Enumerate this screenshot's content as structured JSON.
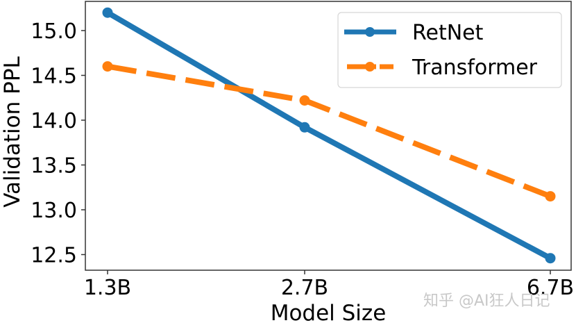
{
  "chart_data": {
    "type": "line",
    "title": "",
    "xlabel": "Model Size",
    "ylabel": "Validation PPL",
    "categories": [
      "1.3B",
      "2.7B",
      "6.7B"
    ],
    "series": [
      {
        "name": "RetNet",
        "values": [
          15.2,
          13.92,
          12.46
        ],
        "color": "#1f77b4",
        "linestyle": "solid",
        "marker": "circle"
      },
      {
        "name": "Transformer",
        "values": [
          14.6,
          14.22,
          13.15
        ],
        "color": "#ff7f0e",
        "linestyle": "dashed",
        "marker": "circle"
      }
    ],
    "yticks": [
      "12.5",
      "13.0",
      "13.5",
      "14.0",
      "14.5",
      "15.0"
    ],
    "ylim": [
      12.31,
      15.33
    ],
    "grid": false,
    "legend_position": "upper right"
  },
  "axes": {
    "xlabel": "Model Size",
    "ylabel": "Validation PPL",
    "xticks": [
      "1.3B",
      "2.7B",
      "6.7B"
    ],
    "yticks": [
      "15.0",
      "14.5",
      "14.0",
      "13.5",
      "13.0",
      "12.5"
    ]
  },
  "legend": {
    "items": [
      {
        "label": "RetNet",
        "color": "#1f77b4"
      },
      {
        "label": "Transformer",
        "color": "#ff7f0e"
      }
    ]
  },
  "watermark": {
    "text": "知乎 @AI狂人日记"
  }
}
